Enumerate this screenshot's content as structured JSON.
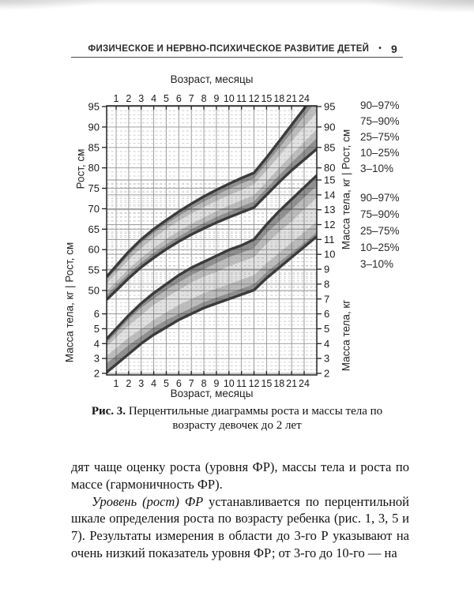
{
  "header": {
    "title": "ФИЗИЧЕСКОЕ И НЕРВНО-ПСИХИЧЕСКОЕ РАЗВИТИЕ ДЕТЕЙ",
    "bullet": "•",
    "page_number": "9"
  },
  "chart_data": {
    "type": "area",
    "title": "Перцентильные диаграммы роста и массы тела по возрасту девочек до 2 лет",
    "x_axis_label": "Возраст, месяцы",
    "left_axis_label_height": "Рост, см",
    "left_axis_label_combined": "Масса тела, кг | Рост, см",
    "right_axis_label_combined": "Масса тела, кг | Рост, см",
    "right_axis_label_weight": "Масса тела, кг",
    "months": [
      "1",
      "2",
      "3",
      "4",
      "5",
      "6",
      "7",
      "8",
      "9",
      "10",
      "11",
      "12",
      "15",
      "18",
      "21",
      "24"
    ],
    "axes": {
      "left_height_ticks": [
        95,
        90,
        85,
        80,
        75,
        70,
        65,
        60,
        55,
        50
      ],
      "left_weight_ticks": [
        6,
        5,
        4,
        3,
        2
      ],
      "right_height_ticks": [
        95,
        90,
        85,
        80
      ],
      "right_weight_ticks": [
        15,
        14,
        13,
        12,
        11,
        10,
        9,
        8,
        7,
        6,
        5,
        4,
        3,
        2
      ],
      "height_range_cm": [
        50,
        95
      ],
      "weight_range_kg": [
        2,
        15
      ],
      "grid": "major solid: 5 cm / 1 kg; minor dashed: 1 cm / 0.25 kg"
    },
    "height_cm": {
      "p97": [
        56,
        59.5,
        62.5,
        65,
        67.2,
        69.3,
        71.2,
        73,
        74.6,
        76.1,
        77.5,
        78.8,
        82.5,
        86.5,
        90.5,
        94.5
      ],
      "p90": [
        55.2,
        58.6,
        61.6,
        64,
        66.2,
        68.2,
        70,
        71.7,
        73.3,
        74.8,
        76.1,
        77.4,
        81,
        84.8,
        88.6,
        92.5
      ],
      "p75": [
        54.2,
        57.5,
        60.4,
        62.8,
        65,
        67,
        68.8,
        70.4,
        71.9,
        73.3,
        74.6,
        75.9,
        79.3,
        82.9,
        86.5,
        90
      ],
      "p25": [
        52.2,
        55.3,
        58,
        60.4,
        62.6,
        64.5,
        66.3,
        67.9,
        69.4,
        70.8,
        72.1,
        73.3,
        76.6,
        80,
        83.2,
        86.3
      ],
      "p10": [
        51.2,
        54.2,
        56.9,
        59.2,
        61.3,
        63.2,
        65,
        66.5,
        68,
        69.3,
        70.6,
        71.8,
        75,
        78.2,
        81.3,
        84.3
      ],
      "p3": [
        50,
        53,
        55.7,
        58,
        60.1,
        62,
        63.7,
        65.2,
        66.6,
        67.9,
        69.1,
        70.3,
        73.4,
        76.5,
        79.4,
        82
      ]
    },
    "weight_kg": {
      "p97": [
        5,
        5.9,
        6.7,
        7.4,
        8,
        8.6,
        9.1,
        9.5,
        9.9,
        10.3,
        10.6,
        11,
        12,
        12.9,
        13.7,
        14.5
      ],
      "p90": [
        4.7,
        5.6,
        6.4,
        7,
        7.6,
        8.1,
        8.6,
        9,
        9.4,
        9.8,
        10.1,
        10.4,
        11.4,
        12.2,
        13,
        13.8
      ],
      "p75": [
        4.4,
        5.2,
        5.9,
        6.6,
        7.1,
        7.6,
        8.1,
        8.5,
        8.8,
        9.2,
        9.5,
        9.8,
        10.7,
        11.5,
        12.2,
        13
      ],
      "p25": [
        3.7,
        4.4,
        5,
        5.6,
        6.1,
        6.6,
        7,
        7.4,
        7.7,
        8,
        8.3,
        8.6,
        9.4,
        10.1,
        10.8,
        11.5
      ],
      "p10": [
        3.2,
        3.9,
        4.5,
        5.1,
        5.6,
        6,
        6.4,
        6.8,
        7.1,
        7.4,
        7.7,
        8,
        8.8,
        9.5,
        10.1,
        10.8
      ],
      "p3": [
        2.6,
        3.3,
        4,
        4.6,
        5.1,
        5.6,
        6,
        6.4,
        6.7,
        7,
        7.3,
        7.6,
        8.4,
        9.1,
        9.8,
        10.5
      ]
    },
    "legend": {
      "height_bands": [
        "90–97%",
        "75–90%",
        "25–75%",
        "10–25%",
        "3–10%"
      ],
      "weight_bands": [
        "90–97%",
        "75–90%",
        "25–75%",
        "10–25%",
        "3–10%"
      ]
    },
    "colors": {
      "edge_line": "#3b3b3b",
      "band_outer": "#8f8f8f",
      "band_mid": "#bdbdbd",
      "band_center": "#e1e1e1",
      "grid_major": "#3c3c3c",
      "grid_minor": "#979797",
      "border": "#222222"
    }
  },
  "caption": {
    "label": "Рис. 3.",
    "text": " Перцентильные диаграммы роста и массы тела по возрасту девочек до 2 лет"
  },
  "body": {
    "para1": "дят чаще оценку роста (уровня ФР), массы тела и роста по массе (гармоничность ФР).",
    "para2_italic": "Уровень (рост) ФР",
    "para2_rest": " устанавливается по перцентильной шкале определения роста по возрасту ребенка (рис. 1, 3, 5 и 7). Результаты измерения в области до 3-го Р указывают на очень низкий показатель уровня ФР; от 3-го до 10-го — на"
  }
}
